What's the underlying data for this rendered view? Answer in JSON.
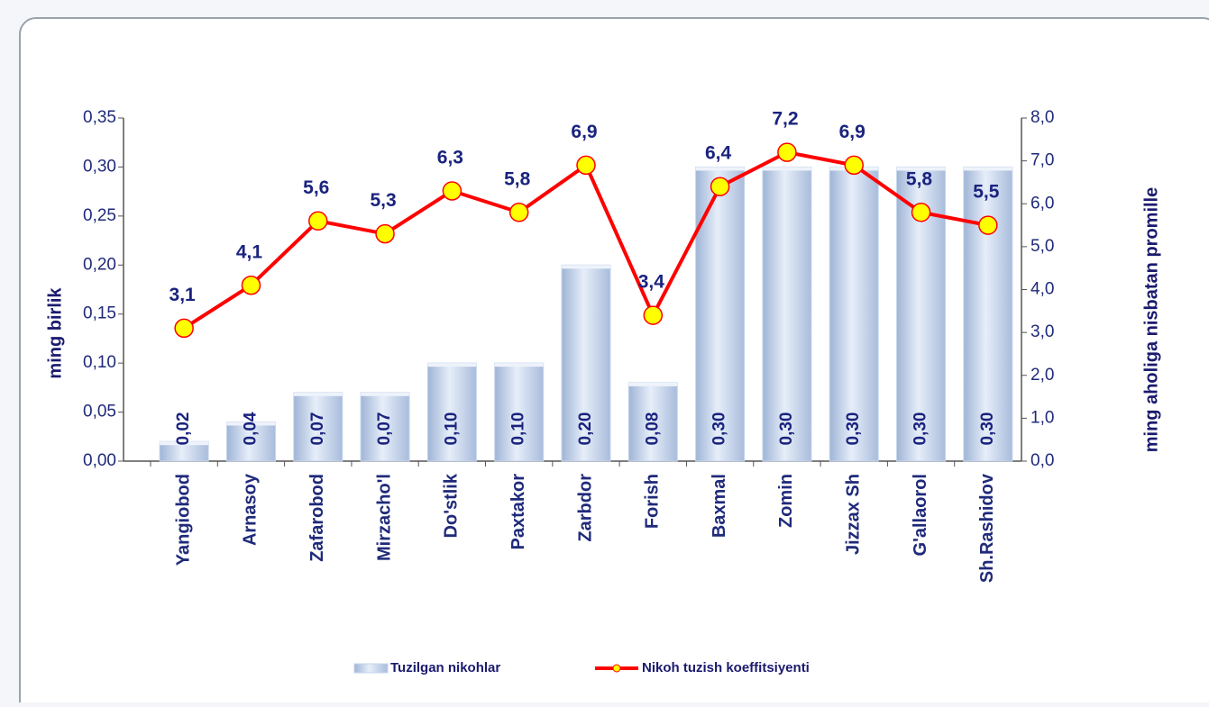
{
  "chart_data": {
    "type": "bar",
    "categories": [
      "Yangiobod",
      "Arnasoy",
      "Zafarobod",
      "Mirzacho'l",
      "Do'stlik",
      "Paxtakor",
      "Zarbdor",
      "Forish",
      "Baxmal",
      "Zomin",
      "Jizzax Sh",
      "G'allaorol",
      "Sh.Rashidov"
    ],
    "series": [
      {
        "name": "Tuzilgan nikohlar",
        "type": "bar",
        "color": "#c5d5ec",
        "values": [
          0.02,
          0.04,
          0.07,
          0.07,
          0.1,
          0.1,
          0.2,
          0.08,
          0.3,
          0.3,
          0.3,
          0.3,
          0.3
        ],
        "value_labels": [
          "0,02",
          "0,04",
          "0,07",
          "0,07",
          "0,10",
          "0,10",
          "0,20",
          "0,08",
          "0,30",
          "0,30",
          "0,30",
          "0,30",
          "0,30"
        ]
      },
      {
        "name": "Nikoh tuzish koeffitsiyenti",
        "type": "line",
        "axis": "y2",
        "color": "#ff0000",
        "marker_color": "#ffff00",
        "values": [
          3.1,
          4.1,
          5.6,
          5.3,
          6.3,
          5.8,
          6.9,
          3.4,
          6.4,
          7.2,
          6.9,
          5.8,
          5.5
        ],
        "value_labels": [
          "3,1",
          "4,1",
          "5,6",
          "5,3",
          "6,3",
          "5,8",
          "6,9",
          "3,4",
          "6,4",
          "7,2",
          "6,9",
          "5,8",
          "5,5"
        ]
      }
    ],
    "ylabel": "ming birlik",
    "y2label": "ming aholiga nisbatan promille",
    "ylim": [
      0,
      0.35
    ],
    "yticks": [
      {
        "value": 0,
        "label": "0,00"
      },
      {
        "value": 0.05,
        "label": "0,05"
      },
      {
        "value": 0.1,
        "label": "0,10"
      },
      {
        "value": 0.15,
        "label": "0,15"
      },
      {
        "value": 0.2,
        "label": "0,20"
      },
      {
        "value": 0.25,
        "label": "0,25"
      },
      {
        "value": 0.3,
        "label": "0,30"
      },
      {
        "value": 0.35,
        "label": "0,35"
      }
    ],
    "y2lim": [
      0,
      8
    ],
    "y2ticks": [
      {
        "value": 0,
        "label": "0,0"
      },
      {
        "value": 1,
        "label": "1,0"
      },
      {
        "value": 2,
        "label": "2,0"
      },
      {
        "value": 3,
        "label": "3,0"
      },
      {
        "value": 4,
        "label": "4,0"
      },
      {
        "value": 5,
        "label": "5,0"
      },
      {
        "value": 6,
        "label": "6,0"
      },
      {
        "value": 7,
        "label": "7,0"
      },
      {
        "value": 8,
        "label": "8,0"
      }
    ],
    "legend": "bottom"
  }
}
